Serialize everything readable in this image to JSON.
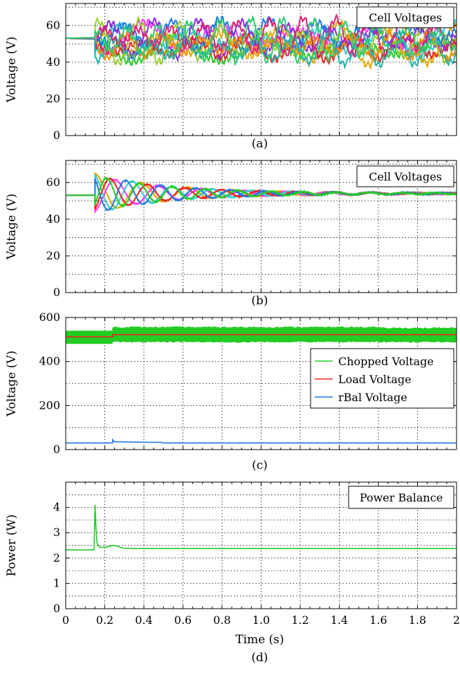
{
  "figure": {
    "xlabel": "Time (s)",
    "x_ticks": [
      0,
      0.2,
      0.4,
      0.6,
      0.8,
      1.0,
      1.2,
      1.4,
      1.6,
      1.8,
      2
    ],
    "x_tick_labels": [
      "0",
      "0.2",
      "0.4",
      "0.6",
      "0.8",
      "1.0",
      "1.2",
      "1.4",
      "1.6",
      "1.8",
      "2"
    ]
  },
  "chart_data": [
    {
      "id": "a",
      "caption": "(a)",
      "type": "line",
      "ylabel": "Voltage (V)",
      "legend": "Cell Voltages",
      "legend_placement": "top-right",
      "xlim": [
        0,
        2
      ],
      "ylim": [
        0,
        72
      ],
      "y_ticks": [
        0,
        20,
        40,
        60
      ],
      "grid": true,
      "series_colors": [
        "#22cc22",
        "#ff33ff",
        "#33cccc",
        "#e6a800",
        "#ee2222",
        "#1f77e0",
        "#8a2be2",
        "#9acd32",
        "#ff8c00",
        "#20b2aa",
        "#dd2277",
        "#2ecc71"
      ],
      "initial_value": 53,
      "disturbance_time": 0.15,
      "swing_range": [
        36,
        71
      ]
    },
    {
      "id": "b",
      "caption": "(b)",
      "type": "line",
      "ylabel": "Voltage (V)",
      "legend": "Cell Voltages",
      "legend_placement": "top-right",
      "xlim": [
        0,
        2
      ],
      "ylim": [
        0,
        72
      ],
      "y_ticks": [
        0,
        20,
        40,
        60
      ],
      "grid": true,
      "series_colors": [
        "#e6a800",
        "#ff33ff",
        "#33cccc",
        "#ee2222",
        "#1f77e0",
        "#22cc22"
      ],
      "initial_value": 53,
      "disturbance_time": 0.15,
      "peak": 64,
      "trough": 45,
      "settled_value": 54
    },
    {
      "id": "c",
      "caption": "(c)",
      "type": "line",
      "ylabel": "Voltage (V)",
      "legend_placement": "right",
      "xlim": [
        0,
        2
      ],
      "ylim": [
        0,
        600
      ],
      "y_ticks": [
        0,
        200,
        400,
        600
      ],
      "grid": true,
      "series": [
        {
          "name": "Chopped Voltage",
          "color": "#22cc22",
          "before": [
            480,
            540
          ],
          "after": [
            490,
            555
          ],
          "step_time": 0.24
        },
        {
          "name": "Load Voltage",
          "color": "#ee2222",
          "before_value": 512,
          "after_value": 522,
          "step_time": 0.24
        },
        {
          "name": "rBal Voltage",
          "color": "#1f77e0",
          "value": 30,
          "spike_time": 0.24,
          "spike_value": 45
        }
      ]
    },
    {
      "id": "d",
      "caption": "(d)",
      "type": "line",
      "ylabel": "Power (W)",
      "legend": "Power Balance",
      "legend_placement": "top-right",
      "xlim": [
        0,
        2
      ],
      "ylim": [
        0,
        5
      ],
      "y_ticks": [
        0,
        1,
        2,
        3,
        4
      ],
      "grid": true,
      "series": [
        {
          "name": "Power Balance",
          "color": "#22cc22",
          "x": [
            0,
            0.145,
            0.15,
            0.155,
            0.16,
            0.17,
            0.18,
            0.2,
            0.22,
            0.24,
            0.26,
            0.28,
            0.3,
            0.35,
            0.5,
            1.0,
            2.0
          ],
          "y": [
            2.32,
            2.32,
            4.1,
            3.2,
            2.6,
            2.45,
            2.42,
            2.42,
            2.45,
            2.5,
            2.48,
            2.42,
            2.39,
            2.38,
            2.38,
            2.38,
            2.38
          ]
        }
      ]
    }
  ]
}
